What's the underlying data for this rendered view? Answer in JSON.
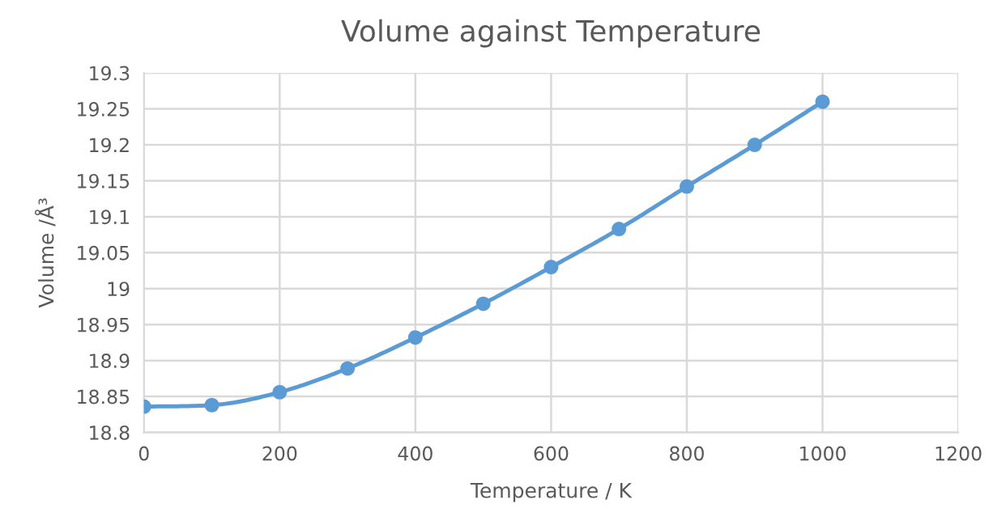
{
  "chart_data": {
    "type": "line",
    "title": "Volume against Temperature",
    "xlabel": "Temperature / K",
    "ylabel": "Volume /Å³",
    "x": [
      0,
      100,
      200,
      300,
      400,
      500,
      600,
      700,
      800,
      900,
      1000
    ],
    "series": [
      {
        "color": "#5b9bd5",
        "values": [
          18.836,
          18.838,
          18.856,
          18.889,
          18.932,
          18.979,
          19.03,
          19.083,
          19.142,
          19.2,
          19.26
        ]
      }
    ],
    "xlim": [
      0,
      1200
    ],
    "xticks": [
      0,
      200,
      400,
      600,
      800,
      1000,
      1200
    ],
    "ylim": [
      18.8,
      19.3
    ],
    "yticks": [
      {
        "value": 18.8,
        "label": "18.8"
      },
      {
        "value": 18.85,
        "label": "18.85"
      },
      {
        "value": 18.9,
        "label": "18.9"
      },
      {
        "value": 18.95,
        "label": "18.95"
      },
      {
        "value": 19.0,
        "label": "19"
      },
      {
        "value": 19.05,
        "label": "19.05"
      },
      {
        "value": 19.1,
        "label": "19.1"
      },
      {
        "value": 19.15,
        "label": "19.15"
      },
      {
        "value": 19.2,
        "label": "19.2"
      },
      {
        "value": 19.25,
        "label": "19.25"
      },
      {
        "value": 19.3,
        "label": "19.3"
      }
    ],
    "grid": true,
    "marker": "circle",
    "line_style": "solid"
  }
}
